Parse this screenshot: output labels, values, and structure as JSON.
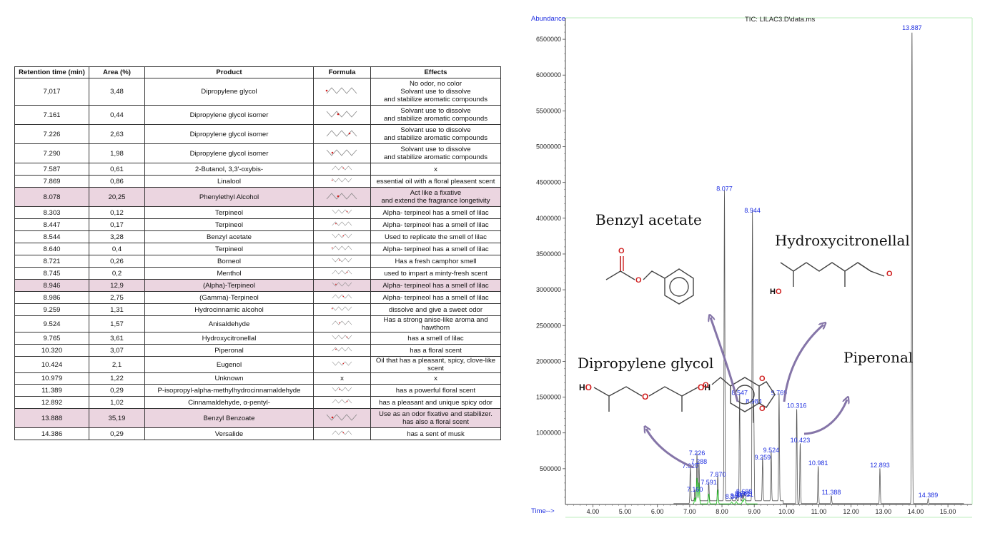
{
  "table": {
    "headers": [
      "Retention time (min)",
      "Area (%)",
      "Product",
      "Formula",
      "Effects"
    ],
    "rows": [
      {
        "rt": "7,017",
        "area": "3,48",
        "product": "Dipropylene glycol",
        "effects": [
          "No odor, no color",
          "Solvant use to dissolve",
          "and stabilize aromatic compounds"
        ],
        "hl": false
      },
      {
        "rt": "7.161",
        "area": "0,44",
        "product": "Dipropylene glycol isomer",
        "effects": [
          "Solvant use to dissolve",
          "and stabilize aromatic compounds"
        ],
        "hl": false
      },
      {
        "rt": "7.226",
        "area": "2,63",
        "product": "Dipropylene glycol isomer",
        "effects": [
          "Solvant use to dissolve",
          "and stabilize aromatic compounds"
        ],
        "hl": false
      },
      {
        "rt": "7.290",
        "area": "1,98",
        "product": "Dipropylene glycol isomer",
        "effects": [
          "Solvant use to dissolve",
          "and stabilize aromatic compounds"
        ],
        "hl": false
      },
      {
        "rt": "7.587",
        "area": "0,61",
        "product": "2-Butanol, 3,3'-oxybis-",
        "effects": [
          "x"
        ],
        "hl": false
      },
      {
        "rt": "7.869",
        "area": "0,86",
        "product": "Linalool",
        "effects": [
          "essential oil with a floral pleasent scent"
        ],
        "hl": false
      },
      {
        "rt": "8.078",
        "area": "20,25",
        "product": "Phenylethyl Alcohol",
        "effects": [
          "Act like a fixative",
          "and extend the fragrance longetivity"
        ],
        "hl": true
      },
      {
        "rt": "8.303",
        "area": "0,12",
        "product": "Terpineol",
        "effects": [
          "Alpha- terpineol has a smell of lilac"
        ],
        "hl": false
      },
      {
        "rt": "8.447",
        "area": "0,17",
        "product": "Terpineol",
        "effects": [
          "Alpha- terpineol has a smell of lilac"
        ],
        "hl": false
      },
      {
        "rt": "8.544",
        "area": "3,28",
        "product": "Benzyl acetate",
        "effects": [
          "Used to replicate the smell of lilac"
        ],
        "hl": false
      },
      {
        "rt": "8.640",
        "area": "0,4",
        "product": "Terpineol",
        "effects": [
          "Alpha- terpineol has a smell of lilac"
        ],
        "hl": false
      },
      {
        "rt": "8.721",
        "area": "0,26",
        "product": "Borneol",
        "effects": [
          "Has a fresh camphor smell"
        ],
        "hl": false
      },
      {
        "rt": "8.745",
        "area": "0,2",
        "product": "Menthol",
        "effects": [
          "used to impart a minty-fresh scent"
        ],
        "hl": false
      },
      {
        "rt": "8.946",
        "area": "12,9",
        "product": "(Alpha)-Terpineol",
        "effects": [
          "Alpha- terpineol has a smell of lilac"
        ],
        "hl": true
      },
      {
        "rt": "8.986",
        "area": "2,75",
        "product": "(Gamma)-Terpineol",
        "effects": [
          "Alpha- terpineol has a smell of lilac"
        ],
        "hl": false
      },
      {
        "rt": "9.259",
        "area": "1,31",
        "product": "Hydrocinnamic alcohol",
        "effects": [
          "dissolve and give a sweet odor"
        ],
        "hl": false
      },
      {
        "rt": "9.524",
        "area": "1,57",
        "product": "Anisaldehyde",
        "effects": [
          "Has a strong anise-like aroma and hawthorn"
        ],
        "hl": false
      },
      {
        "rt": "9.765",
        "area": "3,61",
        "product": "Hydroxycitronellal",
        "effects": [
          "has a smell of lilac"
        ],
        "hl": false
      },
      {
        "rt": "10.320",
        "area": "3,07",
        "product": "Piperonal",
        "effects": [
          "has a floral scent"
        ],
        "hl": false
      },
      {
        "rt": "10.424",
        "area": "2,1",
        "product": "Eugenol",
        "effects": [
          "Oil that has a pleasant, spicy, clove-like scent"
        ],
        "hl": false
      },
      {
        "rt": "10.979",
        "area": "1,22",
        "product": "Unknown",
        "formula": "x",
        "effects": [
          "x"
        ],
        "hl": false
      },
      {
        "rt": "11.389",
        "area": "0,29",
        "product": "P-isopropyl-alpha-methylhydrocinnamaldehyde",
        "effects": [
          "has a powerful floral scent"
        ],
        "hl": false
      },
      {
        "rt": "12.892",
        "area": "1,02",
        "product": "Cinnamaldehyde, α-pentyl-",
        "effects": [
          "has a pleasant and unique spicy odor"
        ],
        "hl": false
      },
      {
        "rt": "13.888",
        "area": "35,19",
        "product": "Benzyl Benzoate",
        "effects": [
          "Use as an odor fixative and stabilizer.",
          "has also a floral scent"
        ],
        "hl": true
      },
      {
        "rt": "14.386",
        "area": "0,29",
        "product": "Versalide",
        "effects": [
          "has a sent of musk"
        ],
        "hl": false
      }
    ]
  },
  "chart_data": {
    "type": "line",
    "title": "TIC: LILAC3.D\\data.ms",
    "ylabel": "Abundance",
    "xlabel": "Time-->",
    "xlim": [
      3.15,
      15.75
    ],
    "ylim": [
      0,
      6800000
    ],
    "xticks": [
      4.0,
      5.0,
      6.0,
      7.0,
      8.0,
      9.0,
      10.0,
      11.0,
      12.0,
      13.0,
      14.0,
      15.0
    ],
    "xtick_labels": [
      "4.00",
      "5.00",
      "6.00",
      "7.00",
      "8.00",
      "9.00",
      "10.00",
      "11.00",
      "12.00",
      "13.00",
      "14.00",
      "15.00"
    ],
    "yticks": [
      500000,
      1000000,
      1500000,
      2000000,
      2500000,
      3000000,
      3500000,
      4000000,
      4500000,
      5000000,
      5500000,
      6000000,
      6500000
    ],
    "ytick_labels": [
      "500000",
      "1000000",
      "1500000",
      "2000000",
      "2500000",
      "3000000",
      "3500000",
      "4000000",
      "4500000",
      "5000000",
      "5500000",
      "6000000",
      "6500000"
    ],
    "peaks": [
      {
        "t": 7.02,
        "y": 480000,
        "label": "7.020"
      },
      {
        "t": 7.16,
        "y": 150000,
        "label": "7.160"
      },
      {
        "t": 7.226,
        "y": 660000,
        "label": "7.226"
      },
      {
        "t": 7.288,
        "y": 540000,
        "label": "7.288"
      },
      {
        "t": 7.591,
        "y": 250000,
        "label": "7.591"
      },
      {
        "t": 7.87,
        "y": 360000,
        "label": "7.870"
      },
      {
        "t": 8.077,
        "y": 4350000,
        "label": "8.077"
      },
      {
        "t": 8.3,
        "y": 50000,
        "label": "8.30"
      },
      {
        "t": 8.447,
        "y": 60000,
        "label": "8.44"
      },
      {
        "t": 8.547,
        "y": 1500000,
        "label": "8.547"
      },
      {
        "t": 8.641,
        "y": 90000,
        "label": "8.641"
      },
      {
        "t": 8.688,
        "y": 120000,
        "label": "8.688"
      },
      {
        "t": 8.721,
        "y": 80000,
        "label": "8.721"
      },
      {
        "t": 8.944,
        "y": 4050000,
        "label": "8.944"
      },
      {
        "t": 8.984,
        "y": 1380000,
        "label": "8.984"
      },
      {
        "t": 9.259,
        "y": 600000,
        "label": "9.259"
      },
      {
        "t": 9.524,
        "y": 700000,
        "label": "9.524"
      },
      {
        "t": 9.769,
        "y": 1500000,
        "label": "9.769"
      },
      {
        "t": 10.316,
        "y": 1320000,
        "label": "10.316"
      },
      {
        "t": 10.423,
        "y": 840000,
        "label": "10.423"
      },
      {
        "t": 10.981,
        "y": 520000,
        "label": "10.981"
      },
      {
        "t": 11.388,
        "y": 110000,
        "label": "11.388"
      },
      {
        "t": 12.893,
        "y": 490000,
        "label": "12.893"
      },
      {
        "t": 13.887,
        "y": 6600000,
        "label": "13.887"
      },
      {
        "t": 14.389,
        "y": 70000,
        "label": "14.389"
      }
    ],
    "annotations": [
      {
        "text": "Benzyl acetate"
      },
      {
        "text": "Hydroxycitronellal"
      },
      {
        "text": "Dipropylene glycol"
      },
      {
        "text": "Piperonal"
      }
    ],
    "colors": {
      "trace": "#555555",
      "label": "#1f2fe0",
      "arrow": "#8575a8",
      "accent_trace": "#19c019"
    }
  }
}
